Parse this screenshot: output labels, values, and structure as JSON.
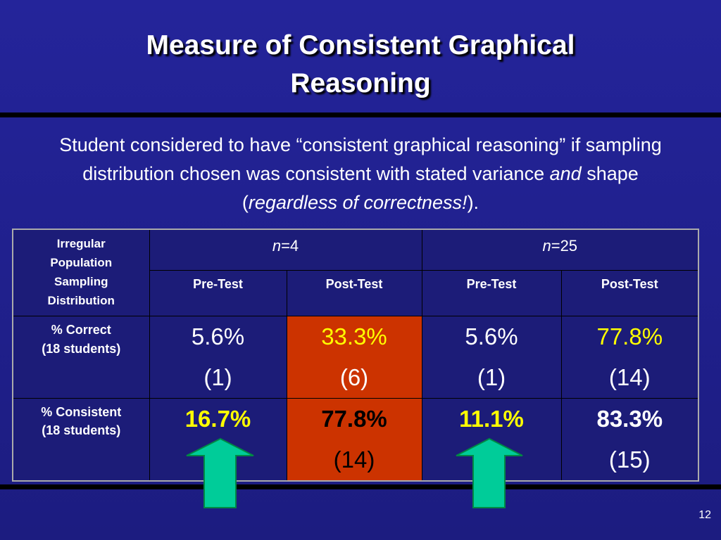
{
  "title": "Measure of Consistent Graphical Reasoning",
  "description": [
    "Student considered to have “consistent graphical reasoning” if sampling distribution chosen was consistent with stated variance",
    "and",
    "shape (",
    "regardless of correctness!",
    ")."
  ],
  "table": {
    "corner": [
      "Irregular Population Sampling",
      "Distribution"
    ],
    "groups": [
      [
        "n",
        "=4"
      ],
      [
        "n",
        "=25"
      ]
    ],
    "columns": [
      "Pre-Test",
      "Post-Test",
      "Pre-Test",
      "Post-Test"
    ],
    "rows": [
      {
        "label": [
          "% Correct",
          "(18 students)"
        ],
        "cells": [
          [
            "5.6%",
            "(1)"
          ],
          [
            "33.3%",
            "(6)"
          ],
          [
            "5.6%",
            "(1)"
          ],
          [
            "77.8%",
            "(14)"
          ]
        ]
      },
      {
        "label": [
          "% Consistent",
          "(18 students)"
        ],
        "cells": [
          [
            "16.7%"
          ],
          [
            "77.8%",
            "(14)"
          ],
          [
            "11.1%"
          ],
          [
            "83.3%",
            "(15)"
          ]
        ]
      }
    ]
  },
  "page_number": "12"
}
